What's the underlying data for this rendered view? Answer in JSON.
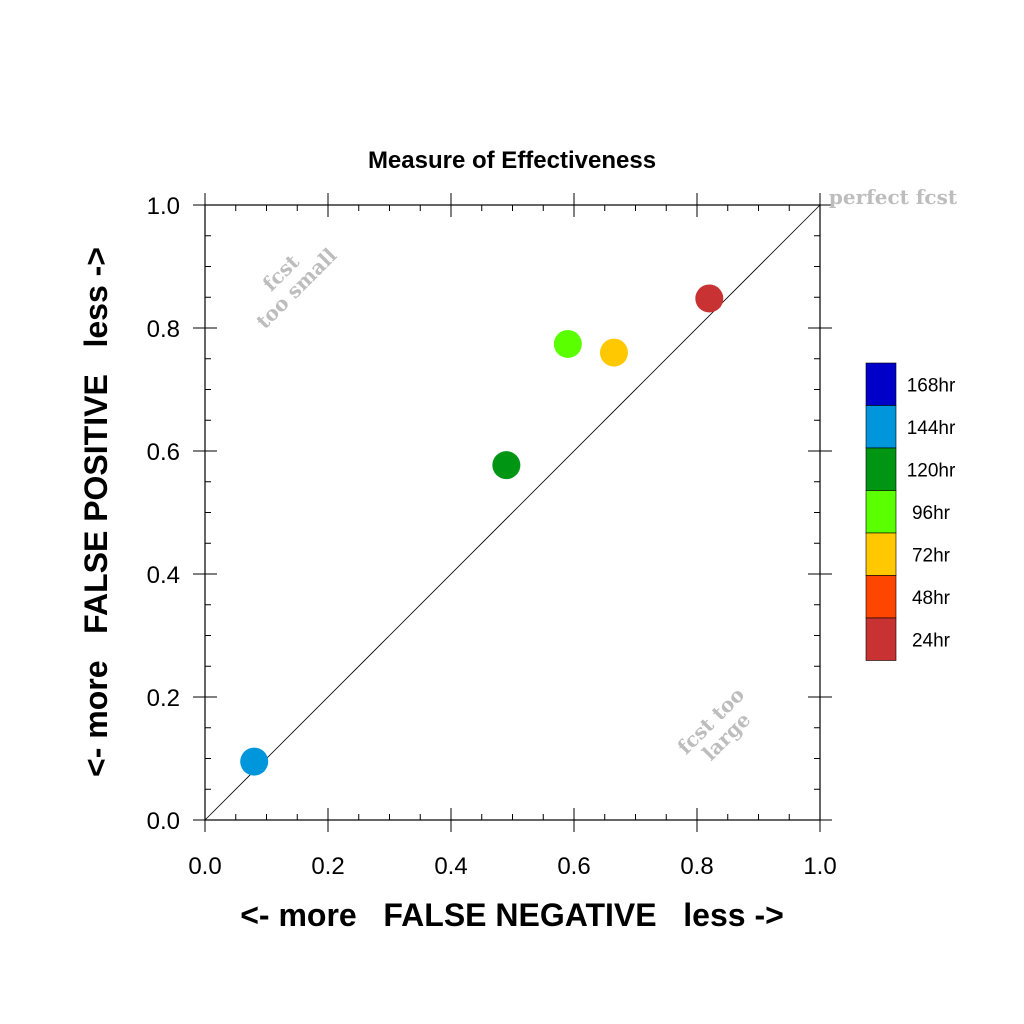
{
  "chart_data": {
    "type": "scatter",
    "title": "Measure of Effectiveness",
    "xlabel": "<- more   FALSE NEGATIVE   less ->",
    "ylabel": "<- more   FALSE POSITIVE   less ->",
    "xlim": [
      0,
      1
    ],
    "ylim": [
      0,
      1
    ],
    "x_ticks": [
      "0.0",
      "0.2",
      "0.4",
      "0.6",
      "0.8",
      "1.0"
    ],
    "y_ticks": [
      "0.0",
      "0.2",
      "0.4",
      "0.6",
      "0.8",
      "1.0"
    ],
    "x_tick_values": [
      0,
      0.2,
      0.4,
      0.6,
      0.8,
      1.0
    ],
    "y_tick_values": [
      0,
      0.2,
      0.4,
      0.6,
      0.8,
      1.0
    ],
    "reference_line": {
      "from": [
        0,
        0
      ],
      "to": [
        1,
        1
      ]
    },
    "annotations": {
      "perfect": "perfect fcst",
      "too_small": [
        "fcst",
        "too small"
      ],
      "too_large": [
        "fcst too",
        "large"
      ]
    },
    "legend": {
      "placement": "right",
      "entries": [
        {
          "label": "168hr",
          "color": "#0000c8"
        },
        {
          "label": "144hr",
          "color": "#0096dc"
        },
        {
          "label": "120hr",
          "color": "#009614"
        },
        {
          "label": "96hr",
          "color": "#5aff00"
        },
        {
          "label": "72hr",
          "color": "#ffc800"
        },
        {
          "label": "48hr",
          "color": "#ff4600"
        },
        {
          "label": "24hr",
          "color": "#c83232"
        }
      ]
    },
    "points": [
      {
        "series": "144hr",
        "x": 0.08,
        "y": 0.095,
        "color": "#0096dc"
      },
      {
        "series": "120hr",
        "x": 0.49,
        "y": 0.577,
        "color": "#009614"
      },
      {
        "series": "96hr",
        "x": 0.59,
        "y": 0.774,
        "color": "#5aff00"
      },
      {
        "series": "72hr",
        "x": 0.665,
        "y": 0.76,
        "color": "#ffc800"
      },
      {
        "series": "24hr",
        "x": 0.82,
        "y": 0.848,
        "color": "#c83232"
      }
    ]
  }
}
